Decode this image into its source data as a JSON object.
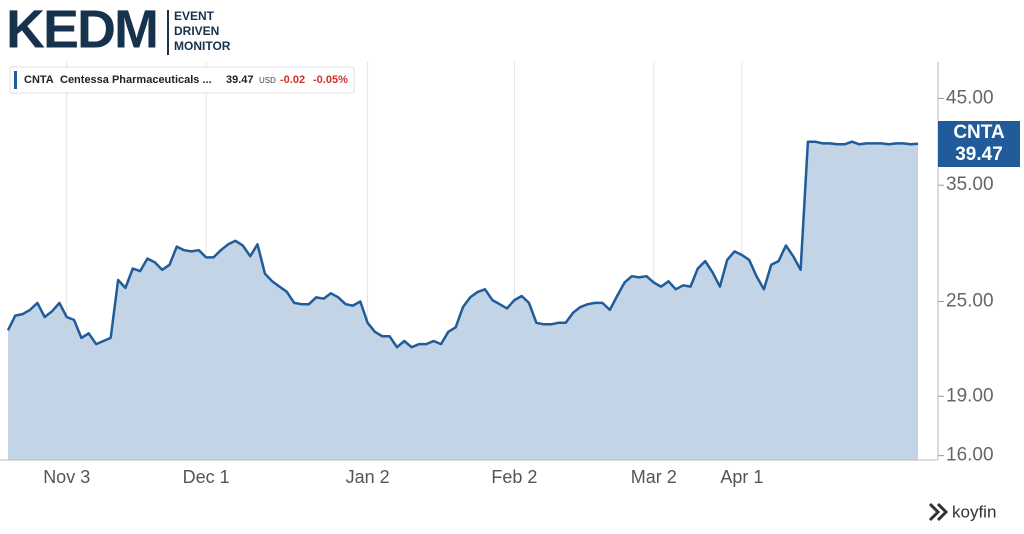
{
  "header": {
    "logo": "KEDM",
    "tagline": [
      "EVENT",
      "DRIVEN",
      "MONITOR"
    ]
  },
  "chart_data": {
    "type": "area",
    "series": [
      {
        "name": "CNTA",
        "description": "Centessa Pharmaceuticals ...",
        "color": "#1f5c99",
        "fill": "#c3d4e6",
        "values": [
          23.0,
          24.0,
          24.1,
          24.4,
          24.9,
          23.9,
          24.3,
          24.9,
          23.9,
          23.7,
          22.5,
          22.8,
          22.1,
          22.3,
          22.5,
          26.6,
          26.0,
          27.5,
          27.3,
          28.3,
          28.0,
          27.4,
          27.8,
          29.3,
          29.0,
          28.9,
          29.0,
          28.4,
          28.4,
          29.0,
          29.5,
          29.8,
          29.4,
          28.5,
          29.5,
          27.1,
          26.5,
          26.1,
          25.7,
          24.9,
          24.8,
          24.8,
          25.3,
          25.2,
          25.6,
          25.3,
          24.8,
          24.7,
          25.0,
          23.5,
          22.9,
          22.6,
          22.6,
          21.9,
          22.3,
          21.9,
          22.1,
          22.1,
          22.3,
          22.1,
          22.9,
          23.2,
          24.6,
          25.3,
          25.7,
          25.9,
          25.1,
          24.8,
          24.5,
          25.1,
          25.4,
          24.9,
          23.5,
          23.4,
          23.4,
          23.5,
          23.5,
          24.2,
          24.6,
          24.8,
          24.9,
          24.9,
          24.4,
          25.4,
          26.4,
          26.9,
          26.8,
          26.9,
          26.4,
          26.1,
          26.5,
          25.9,
          26.2,
          26.1,
          27.5,
          28.1,
          27.2,
          26.1,
          28.2,
          28.9,
          28.6,
          28.2,
          26.9,
          25.9,
          27.8,
          28.1,
          29.4,
          28.5,
          27.4,
          39.7,
          39.7,
          39.5,
          39.5,
          39.4,
          39.4,
          39.7,
          39.4,
          39.5,
          39.5,
          39.5,
          39.4,
          39.5,
          39.5,
          39.4,
          39.47
        ]
      }
    ],
    "categories": [
      null,
      null,
      null,
      null,
      null,
      null,
      null,
      null,
      "Nov 3",
      null,
      null,
      null,
      null,
      null,
      null,
      null,
      null,
      null,
      null,
      null,
      null,
      null,
      null,
      null,
      null,
      null,
      null,
      "Dec 1",
      null,
      null,
      null,
      null,
      null,
      null,
      null,
      null,
      null,
      null,
      null,
      null,
      null,
      null,
      null,
      null,
      null,
      null,
      null,
      null,
      null,
      "Jan 2",
      null,
      null,
      null,
      null,
      null,
      null,
      null,
      null,
      null,
      null,
      null,
      null,
      null,
      null,
      null,
      null,
      null,
      null,
      null,
      "Feb 2",
      null,
      null,
      null,
      null,
      null,
      null,
      null,
      null,
      null,
      null,
      null,
      null,
      null,
      null,
      null,
      null,
      null,
      null,
      "Mar 2",
      null,
      null,
      null,
      null,
      null,
      null,
      null,
      null,
      null,
      null,
      null,
      "Apr 1",
      null,
      null,
      null,
      null,
      null,
      null,
      null,
      null,
      null,
      null,
      null,
      null,
      null,
      null,
      null,
      null,
      null,
      null,
      null,
      null,
      null,
      null,
      null,
      null
    ],
    "ylim": [
      15.8,
      50
    ],
    "log_scale": true,
    "yticks": [
      {
        "value": 16,
        "label": "16.00"
      },
      {
        "value": 19,
        "label": "19.00"
      },
      {
        "value": 25,
        "label": "25.00"
      },
      {
        "value": 35,
        "label": "35.00"
      },
      {
        "value": 45,
        "label": "45.00"
      }
    ],
    "grid": true,
    "currency": "USD",
    "change": -0.02,
    "change_pct": {
      "value": -0.05,
      "label": "-0.05%"
    },
    "change_color": "#d0312d"
  },
  "footer": {
    "brand": "koyfin"
  }
}
